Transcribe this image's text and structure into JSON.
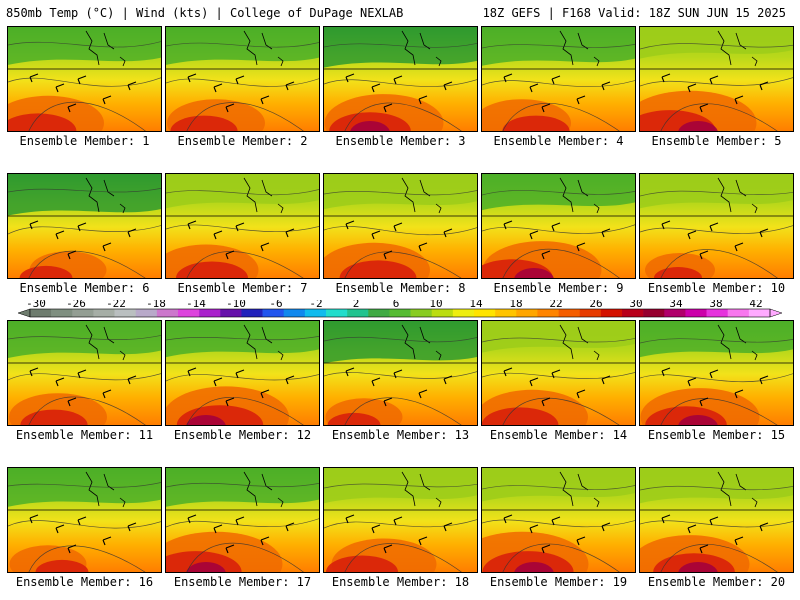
{
  "header": {
    "left": "850mb Temp (°C) | Wind (kts) | College of DuPage NEXLAB",
    "right": "18Z GEFS | F168 Valid: 18Z SUN JUN 15 2025"
  },
  "members": [
    {
      "label": "Ensemble Member: 1",
      "heat": 0.8,
      "cool": 0.55
    },
    {
      "label": "Ensemble Member: 2",
      "heat": 0.7,
      "cool": 0.55
    },
    {
      "label": "Ensemble Member: 3",
      "heat": 0.85,
      "cool": 0.7
    },
    {
      "label": "Ensemble Member: 4",
      "heat": 0.7,
      "cool": 0.6
    },
    {
      "label": "Ensemble Member: 5",
      "heat": 0.95,
      "cool": 0.2
    },
    {
      "label": "Ensemble Member: 6",
      "heat": 0.55,
      "cool": 0.75
    },
    {
      "label": "Ensemble Member: 7",
      "heat": 0.75,
      "cool": 0.35
    },
    {
      "label": "Ensemble Member: 8",
      "heat": 0.8,
      "cool": 0.4
    },
    {
      "label": "Ensemble Member: 9",
      "heat": 0.85,
      "cool": 0.45
    },
    {
      "label": "Ensemble Member: 10",
      "heat": 0.5,
      "cool": 0.35
    },
    {
      "label": "Ensemble Member: 11",
      "heat": 0.7,
      "cool": 0.5
    },
    {
      "label": "Ensemble Member: 12",
      "heat": 0.9,
      "cool": 0.45
    },
    {
      "label": "Ensemble Member: 13",
      "heat": 0.55,
      "cool": 0.8
    },
    {
      "label": "Ensemble Member: 14",
      "heat": 0.8,
      "cool": 0.2
    },
    {
      "label": "Ensemble Member: 15",
      "heat": 0.85,
      "cool": 0.45
    },
    {
      "label": "Ensemble Member: 16",
      "heat": 0.55,
      "cool": 0.6
    },
    {
      "label": "Ensemble Member: 17",
      "heat": 0.95,
      "cool": 0.6
    },
    {
      "label": "Ensemble Member: 18",
      "heat": 0.75,
      "cool": 0.4
    },
    {
      "label": "Ensemble Member: 19",
      "heat": 0.95,
      "cool": 0.3
    },
    {
      "label": "Ensemble Member: 20",
      "heat": 0.85,
      "cool": 0.4
    }
  ],
  "colorbar": {
    "tick_labels": [
      "-30",
      "-26",
      "-22",
      "-18",
      "-14",
      "-10",
      "-6",
      "-2",
      "2",
      "6",
      "10",
      "14",
      "18",
      "22",
      "26",
      "30",
      "34",
      "38",
      "42"
    ],
    "colors": [
      "#6e7c6e",
      "#7f8f80",
      "#939e93",
      "#a6aea6",
      "#babfc0",
      "#b8a9c9",
      "#cc77cc",
      "#dd44dd",
      "#aa22cc",
      "#6611aa",
      "#2222bb",
      "#2255ee",
      "#1188ee",
      "#11bbee",
      "#22ddcc",
      "#22c38f",
      "#3faa44",
      "#55bb33",
      "#88cc22",
      "#bbdd11",
      "#eeee11",
      "#ffe400",
      "#ffc400",
      "#ffa600",
      "#ff8400",
      "#f55e00",
      "#e73b00",
      "#d41200",
      "#b8001a",
      "#96002e",
      "#b0006a",
      "#cc00aa",
      "#e633dd",
      "#f877ee",
      "#ffaaff"
    ],
    "units": "°C"
  }
}
